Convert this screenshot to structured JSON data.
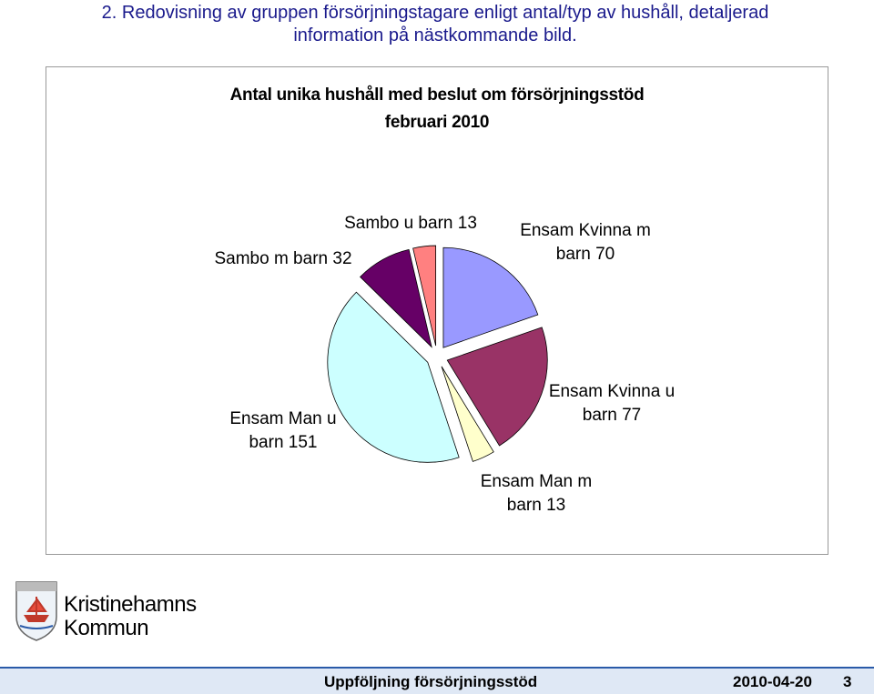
{
  "header": {
    "text": "2. Redovisning av gruppen försörjningstagare enligt antal/typ av hushåll, detaljerad information på nästkommande bild."
  },
  "chart_data": {
    "type": "pie",
    "title": "Antal unika hushåll med beslut om försörjningsstöd",
    "subtitle": "februari 2010",
    "categories": [
      "Ensam Kvinna m barn",
      "Ensam Kvinna u barn",
      "Ensam Man m barn",
      "Ensam Man u barn",
      "Sambo m barn",
      "Sambo u barn"
    ],
    "values": [
      70,
      77,
      13,
      151,
      32,
      13
    ],
    "colors": [
      "#9999ff",
      "#993366",
      "#ffffcc",
      "#ccffff",
      "#660066",
      "#ff8080"
    ]
  },
  "logo": {
    "line1": "Kristinehamns",
    "line2": "Kommun"
  },
  "footer": {
    "title": "Uppföljning försörjningsstöd",
    "date": "2010-04-20",
    "page": "3"
  }
}
